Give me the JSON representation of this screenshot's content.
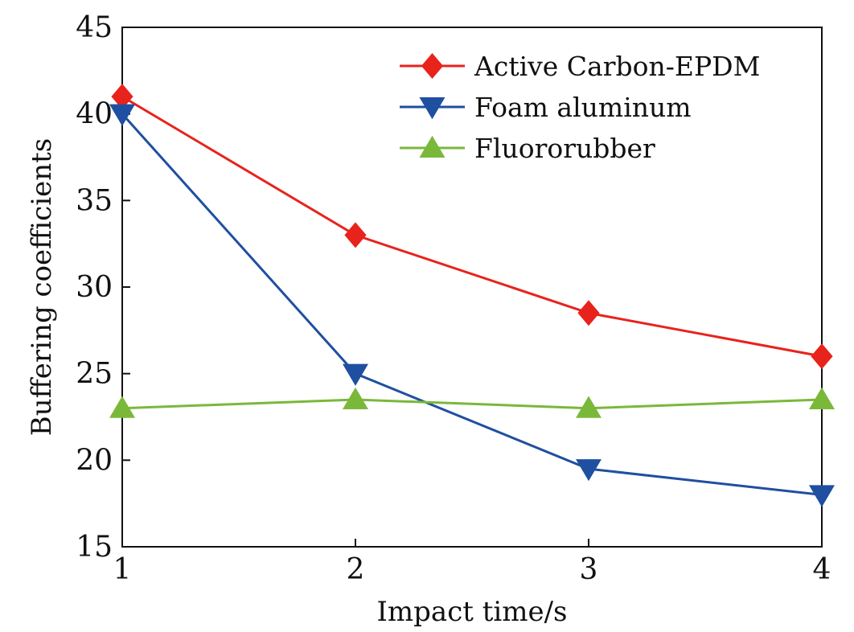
{
  "chart_data": {
    "type": "line",
    "title": "",
    "xlabel": "Impact time/s",
    "ylabel": "Buffering coefficients",
    "x": [
      1,
      2,
      3,
      4
    ],
    "xlim": [
      1,
      4
    ],
    "ylim": [
      15,
      45
    ],
    "xticks": [
      1,
      2,
      3,
      4
    ],
    "yticks": [
      15,
      20,
      25,
      30,
      35,
      40,
      45
    ],
    "grid": false,
    "legend_position": "top-right",
    "series": [
      {
        "name": "Active Carbon-EPDM",
        "values": [
          41,
          33,
          28.5,
          26
        ],
        "color": "#e8231c",
        "marker": "diamond"
      },
      {
        "name": "Foam aluminum",
        "values": [
          40,
          25,
          19.5,
          18
        ],
        "color": "#1f4fa0",
        "marker": "triangle-down"
      },
      {
        "name": "Fluororubber",
        "values": [
          23,
          23.5,
          23,
          23.5
        ],
        "color": "#7ab83a",
        "marker": "triangle-up"
      }
    ]
  }
}
